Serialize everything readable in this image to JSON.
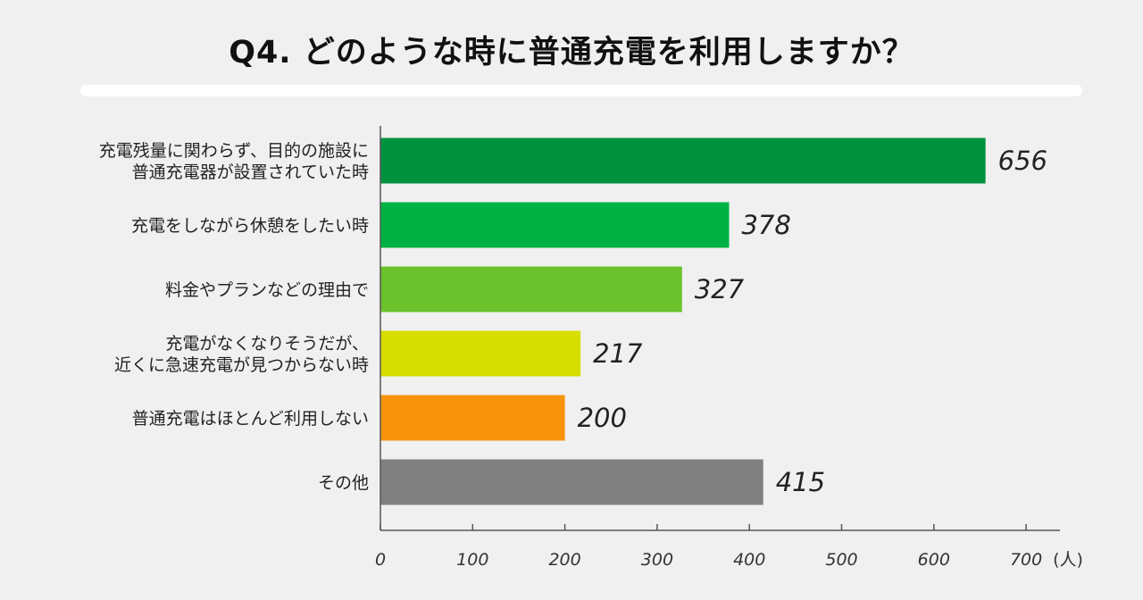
{
  "chart_data": {
    "type": "bar",
    "orientation": "horizontal",
    "title": "Q4. どのような時に普通充電を利用しますか？",
    "categories": [
      "充電残量に関わらず、目的の施設に\n普通充電器が設置されていた時",
      "充電をしながら休憩をしたい時",
      "料金やプランなどの理由で",
      "充電がなくなりそうだが、\n近くに急速充電が見つからない時",
      "普通充電はほとんど利用しない",
      "その他"
    ],
    "values": [
      656,
      378,
      327,
      217,
      200,
      415
    ],
    "colors": [
      "#00923f",
      "#00b243",
      "#6cc22c",
      "#d6de00",
      "#f7930a",
      "#808080"
    ],
    "xlim": [
      0,
      700
    ],
    "xticks": [
      0,
      100,
      200,
      300,
      400,
      500,
      600,
      700
    ],
    "xunit": "(人)",
    "grid": false
  }
}
